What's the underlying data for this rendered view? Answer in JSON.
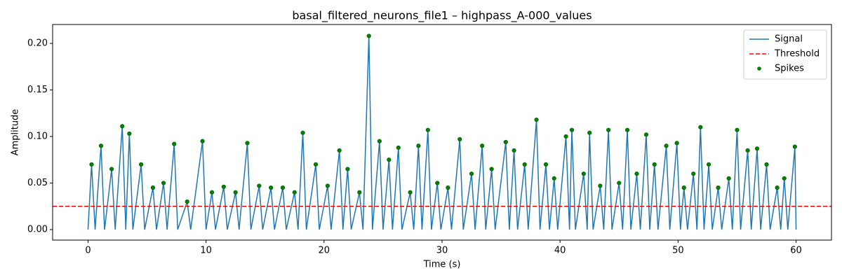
{
  "chart_data": {
    "type": "line",
    "title": "basal_filtered_neurons_file1 – highpass_A-000_values",
    "xlabel": "Time (s)",
    "ylabel": "Amplitude",
    "xlim": [
      -3,
      63
    ],
    "ylim": [
      -0.0113,
      0.2203
    ],
    "xticks": [
      0,
      10,
      20,
      30,
      40,
      50,
      60
    ],
    "yticks": [
      {
        "value": 0,
        "label": "0.00"
      },
      {
        "value": 0.05,
        "label": "0.05"
      },
      {
        "value": 0.1,
        "label": "0.10"
      },
      {
        "value": 0.15,
        "label": "0.15"
      },
      {
        "value": 0.2,
        "label": "0.20"
      }
    ],
    "legend": "upper right",
    "series": [
      {
        "name": "Signal",
        "color": "#1f77b4",
        "x": [
          0,
          0.3,
          0.6,
          1.1,
          1.4,
          2.0,
          2.3,
          2.9,
          3.2,
          3.5,
          3.8,
          4.5,
          4.8,
          5.5,
          5.8,
          6.4,
          6.7,
          7.3,
          7.6,
          8.4,
          8.7,
          9.7,
          10.0,
          10.5,
          10.8,
          11.5,
          11.8,
          12.5,
          12.8,
          13.5,
          13.8,
          14.5,
          14.8,
          15.5,
          15.8,
          16.5,
          16.8,
          17.5,
          17.8,
          18.2,
          18.5,
          19.3,
          19.6,
          20.3,
          20.6,
          21.3,
          21.6,
          22.0,
          22.3,
          23.0,
          23.3,
          23.8,
          24.1,
          24.7,
          25.0,
          25.5,
          25.8,
          26.3,
          26.6,
          27.3,
          27.6,
          28.0,
          28.3,
          28.8,
          29.1,
          29.6,
          29.9,
          30.5,
          30.8,
          31.5,
          31.8,
          32.5,
          32.8,
          33.4,
          33.7,
          34.2,
          34.5,
          35.4,
          35.7,
          36.1,
          36.4,
          37.0,
          37.3,
          38.0,
          38.3,
          38.8,
          39.1,
          39.5,
          39.8,
          40.5,
          40.8,
          41.0,
          41.3,
          42.0,
          42.3,
          42.5,
          42.8,
          43.4,
          43.7,
          44.1,
          44.4,
          45.0,
          45.3,
          45.7,
          46.0,
          46.5,
          46.8,
          47.3,
          47.6,
          48.0,
          48.3,
          49.0,
          49.3,
          49.9,
          50.2,
          50.5,
          50.8,
          51.3,
          51.6,
          51.9,
          52.2,
          52.6,
          52.9,
          53.4,
          53.7,
          54.3,
          54.6,
          55.0,
          55.3,
          55.9,
          56.2,
          56.7,
          57.0,
          57.5,
          57.8,
          58.4,
          58.7,
          59.0,
          59.3,
          59.9,
          60.0
        ],
        "values": [
          0,
          0.07,
          0,
          0.09,
          0,
          0.065,
          0,
          0.111,
          0,
          0.103,
          0,
          0.07,
          0,
          0.045,
          0,
          0.05,
          0,
          0.092,
          0,
          0.03,
          0,
          0.095,
          0,
          0.04,
          0,
          0.046,
          0,
          0.04,
          0,
          0.093,
          0,
          0.047,
          0,
          0.045,
          0,
          0.045,
          0,
          0.04,
          0,
          0.104,
          0,
          0.07,
          0,
          0.047,
          0,
          0.085,
          0,
          0.065,
          0,
          0.04,
          0,
          0.208,
          0,
          0.095,
          0,
          0.075,
          0,
          0.088,
          0,
          0.04,
          0,
          0.09,
          0,
          0.107,
          0,
          0.05,
          0,
          0.045,
          0,
          0.097,
          0,
          0.06,
          0,
          0.09,
          0,
          0.065,
          0,
          0.094,
          0,
          0.085,
          0,
          0.07,
          0,
          0.118,
          0,
          0.07,
          0,
          0.055,
          0,
          0.1,
          0,
          0.107,
          0,
          0.06,
          0,
          0.104,
          0,
          0.047,
          0,
          0.107,
          0,
          0.05,
          0,
          0.107,
          0,
          0.06,
          0,
          0.102,
          0,
          0.07,
          0,
          0.09,
          0,
          0.093,
          0,
          0.045,
          0,
          0.06,
          0,
          0.11,
          0,
          0.07,
          0,
          0.045,
          0,
          0.055,
          0,
          0.107,
          0,
          0.085,
          0,
          0.087,
          0,
          0.07,
          0,
          0.045,
          0,
          0.055,
          0,
          0.089,
          0
        ]
      },
      {
        "name": "Spikes",
        "type": "scatter",
        "color": "green",
        "x": [
          0.3,
          1.1,
          2.0,
          2.9,
          3.5,
          4.5,
          5.5,
          6.4,
          7.3,
          8.4,
          9.7,
          10.5,
          11.5,
          12.5,
          13.5,
          14.5,
          15.5,
          16.5,
          17.5,
          18.2,
          19.3,
          20.3,
          21.3,
          22.0,
          23.0,
          23.8,
          24.7,
          25.5,
          26.3,
          27.3,
          28.0,
          28.8,
          29.6,
          30.5,
          31.5,
          32.5,
          33.4,
          34.2,
          35.4,
          36.1,
          37.0,
          38.0,
          38.8,
          39.5,
          40.5,
          41.0,
          42.0,
          42.5,
          43.4,
          44.1,
          45.0,
          45.7,
          46.5,
          47.3,
          48.0,
          49.0,
          49.9,
          50.5,
          51.3,
          51.9,
          52.6,
          53.4,
          54.3,
          55.0,
          55.9,
          56.7,
          57.5,
          58.4,
          59.0,
          59.9
        ],
        "values": [
          0.07,
          0.09,
          0.065,
          0.111,
          0.103,
          0.07,
          0.045,
          0.05,
          0.092,
          0.03,
          0.095,
          0.04,
          0.046,
          0.04,
          0.093,
          0.047,
          0.045,
          0.045,
          0.04,
          0.104,
          0.07,
          0.047,
          0.085,
          0.065,
          0.04,
          0.208,
          0.095,
          0.075,
          0.088,
          0.04,
          0.09,
          0.107,
          0.05,
          0.045,
          0.097,
          0.06,
          0.09,
          0.065,
          0.094,
          0.085,
          0.07,
          0.118,
          0.07,
          0.055,
          0.1,
          0.107,
          0.06,
          0.104,
          0.047,
          0.107,
          0.05,
          0.107,
          0.06,
          0.102,
          0.07,
          0.09,
          0.093,
          0.045,
          0.06,
          0.11,
          0.07,
          0.045,
          0.055,
          0.107,
          0.085,
          0.087,
          0.07,
          0.045,
          0.055,
          0.089
        ]
      }
    ],
    "threshold": {
      "name": "Threshold",
      "value": 0.025,
      "color": "red"
    }
  }
}
